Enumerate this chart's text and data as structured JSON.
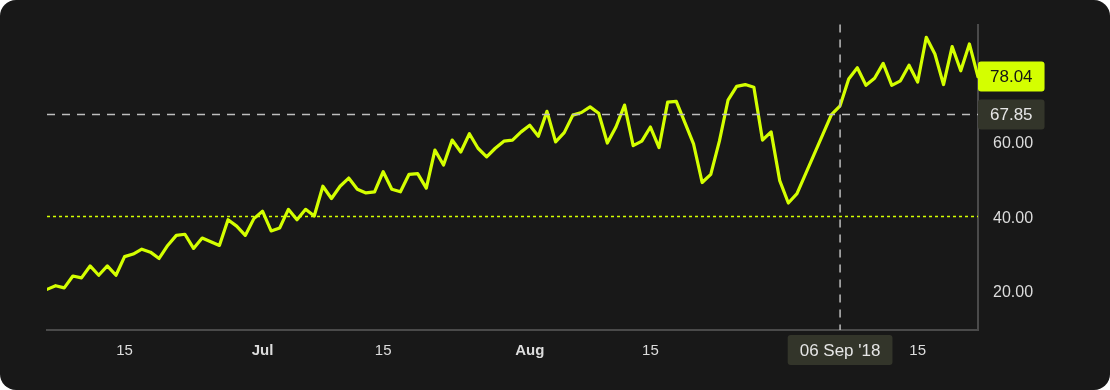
{
  "chart_data": {
    "type": "line",
    "x": [
      "2018-06-06",
      "2018-06-07",
      "2018-06-08",
      "2018-06-09",
      "2018-06-10",
      "2018-06-11",
      "2018-06-12",
      "2018-06-13",
      "2018-06-14",
      "2018-06-15",
      "2018-06-16",
      "2018-06-17",
      "2018-06-18",
      "2018-06-19",
      "2018-06-20",
      "2018-06-21",
      "2018-06-22",
      "2018-06-23",
      "2018-06-24",
      "2018-06-25",
      "2018-06-26",
      "2018-06-27",
      "2018-06-28",
      "2018-06-29",
      "2018-06-30",
      "2018-07-01",
      "2018-07-02",
      "2018-07-03",
      "2018-07-04",
      "2018-07-05",
      "2018-07-06",
      "2018-07-07",
      "2018-07-08",
      "2018-07-09",
      "2018-07-10",
      "2018-07-11",
      "2018-07-12",
      "2018-07-13",
      "2018-07-14",
      "2018-07-15",
      "2018-07-16",
      "2018-07-17",
      "2018-07-18",
      "2018-07-19",
      "2018-07-20",
      "2018-07-21",
      "2018-07-22",
      "2018-07-23",
      "2018-07-24",
      "2018-07-25",
      "2018-07-26",
      "2018-07-27",
      "2018-07-28",
      "2018-07-29",
      "2018-07-30",
      "2018-07-31",
      "2018-08-01",
      "2018-08-02",
      "2018-08-03",
      "2018-08-04",
      "2018-08-05",
      "2018-08-06",
      "2018-08-07",
      "2018-08-08",
      "2018-08-09",
      "2018-08-10",
      "2018-08-11",
      "2018-08-12",
      "2018-08-13",
      "2018-08-14",
      "2018-08-15",
      "2018-08-16",
      "2018-08-17",
      "2018-08-18",
      "2018-08-19",
      "2018-08-20",
      "2018-08-21",
      "2018-08-22",
      "2018-08-23",
      "2018-08-24",
      "2018-08-25",
      "2018-08-26",
      "2018-08-27",
      "2018-08-28",
      "2018-08-29",
      "2018-08-30",
      "2018-08-31",
      "2018-09-01",
      "2018-09-02",
      "2018-09-03",
      "2018-09-04",
      "2018-09-05",
      "2018-09-06",
      "2018-09-07",
      "2018-09-08",
      "2018-09-09",
      "2018-09-10",
      "2018-09-11",
      "2018-09-12",
      "2018-09-13",
      "2018-09-14",
      "2018-09-15",
      "2018-09-16",
      "2018-09-17",
      "2018-09-18",
      "2018-09-19",
      "2018-09-20",
      "2018-09-21",
      "2018-09-22"
    ],
    "series": [
      {
        "color": "#d4ff00",
        "values": [
          20.9,
          21.9,
          21.3,
          24.5,
          24.0,
          27.2,
          24.7,
          27.2,
          24.7,
          29.7,
          30.4,
          31.7,
          30.9,
          29.2,
          32.7,
          35.4,
          35.7,
          31.9,
          34.7,
          33.7,
          32.7,
          39.6,
          37.9,
          35.4,
          39.9,
          41.9,
          36.6,
          37.4,
          42.4,
          39.6,
          42.4,
          40.6,
          48.6,
          45.3,
          48.6,
          50.8,
          47.8,
          46.8,
          47.1,
          52.5,
          47.8,
          47.1,
          51.8,
          52.0,
          48.1,
          58.3,
          54.3,
          61.0,
          57.8,
          62.7,
          58.8,
          56.5,
          58.8,
          60.7,
          61.0,
          63.2,
          65.0,
          62.0,
          68.7,
          60.5,
          63.0,
          67.7,
          68.4,
          69.9,
          68.2,
          60.2,
          64.5,
          70.4,
          59.5,
          60.7,
          64.5,
          59.0,
          71.2,
          71.4,
          65.7,
          60.0,
          49.6,
          51.8,
          60.7,
          71.7,
          75.4,
          75.9,
          75.2,
          61.0,
          63.2,
          50.1,
          44.1,
          46.6,
          51.9,
          57.2,
          62.5,
          67.8,
          70.2,
          77.4,
          80.4,
          75.7,
          77.6,
          81.6,
          75.7,
          76.9,
          81.1,
          76.6,
          88.6,
          84.1,
          75.9,
          86.1,
          79.6,
          86.8,
          78.0
        ]
      }
    ],
    "xlim": [
      "2018-06-06",
      "2018-09-22"
    ],
    "xticks": [
      {
        "value": "2018-06-15",
        "label": "15"
      },
      {
        "value": "2018-07-01",
        "label": "Jul"
      },
      {
        "value": "2018-07-15",
        "label": "15"
      },
      {
        "value": "2018-08-01",
        "label": "Aug"
      },
      {
        "value": "2018-08-15",
        "label": "15"
      },
      {
        "value": "2018-09-15",
        "label": "15"
      }
    ],
    "ylim": [
      10,
      92
    ],
    "yticks": [
      {
        "value": 20,
        "label": "20.00"
      },
      {
        "value": 40,
        "label": "40.00"
      },
      {
        "value": 60,
        "label": "60.00"
      }
    ],
    "ref_lines": [
      {
        "axis": "y",
        "value": 40.5,
        "color": "#d4ff00",
        "line_style": "dotted"
      },
      {
        "axis": "y",
        "value": 67.85,
        "label": "67.85",
        "color": "#bdbdbd",
        "line_style": "dashed"
      },
      {
        "axis": "x",
        "value": "2018-09-06",
        "label": "06 Sep '18",
        "color": "#bdbdbd",
        "line_style": "dashed"
      }
    ],
    "annotations": [
      {
        "text": "78.04",
        "x": "2018-09-22",
        "y": 78.04
      }
    ],
    "grid": false,
    "legend": false,
    "marker": "none",
    "line_style": "solid"
  }
}
